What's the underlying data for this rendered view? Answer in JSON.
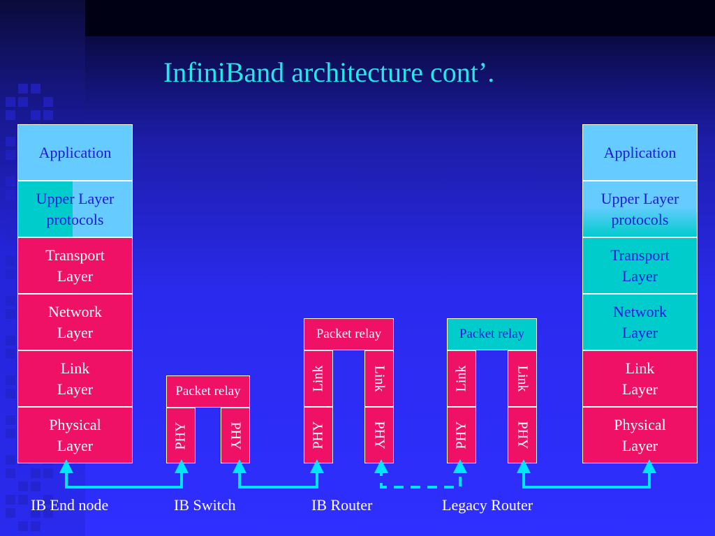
{
  "slide": {
    "title": "InfiniBand architecture cont’."
  },
  "end_node_left": {
    "application": "Application",
    "upper_layer": "Upper Layer\nprotocols",
    "transport": "Transport\nLayer",
    "network": "Network\nLayer",
    "link": "Link\nLayer",
    "physical": "Physical\nLayer"
  },
  "ib_switch": {
    "relay": "Packet relay",
    "phy_left": "PHY",
    "phy_right": "PHY"
  },
  "ib_router": {
    "relay": "Packet relay",
    "link_left": "Link",
    "link_right": "Link",
    "phy_left": "PHY",
    "phy_right": "PHY"
  },
  "legacy_router": {
    "relay": "Packet relay",
    "link_left": "Link",
    "link_right": "Link",
    "phy_left": "PHY",
    "phy_right": "PHY"
  },
  "end_node_right": {
    "application": "Application",
    "upper_layer": "Upper Layer\nprotocols",
    "transport": "Transport\nLayer",
    "network": "Network\nLayer",
    "link": "Link\nLayer",
    "physical": "Physical\nLayer"
  },
  "captions": {
    "ib_end_node": "IB End node",
    "ib_switch": "IB Switch",
    "ib_router": "IB Router",
    "legacy_router": "Legacy Router"
  },
  "colors": {
    "title": "#22e8e8",
    "layer_pink": "#ee1166",
    "layer_sky": "#66ccff",
    "layer_teal": "#00cccc",
    "connector": "#00e5ff",
    "background": "#2f2fff"
  }
}
